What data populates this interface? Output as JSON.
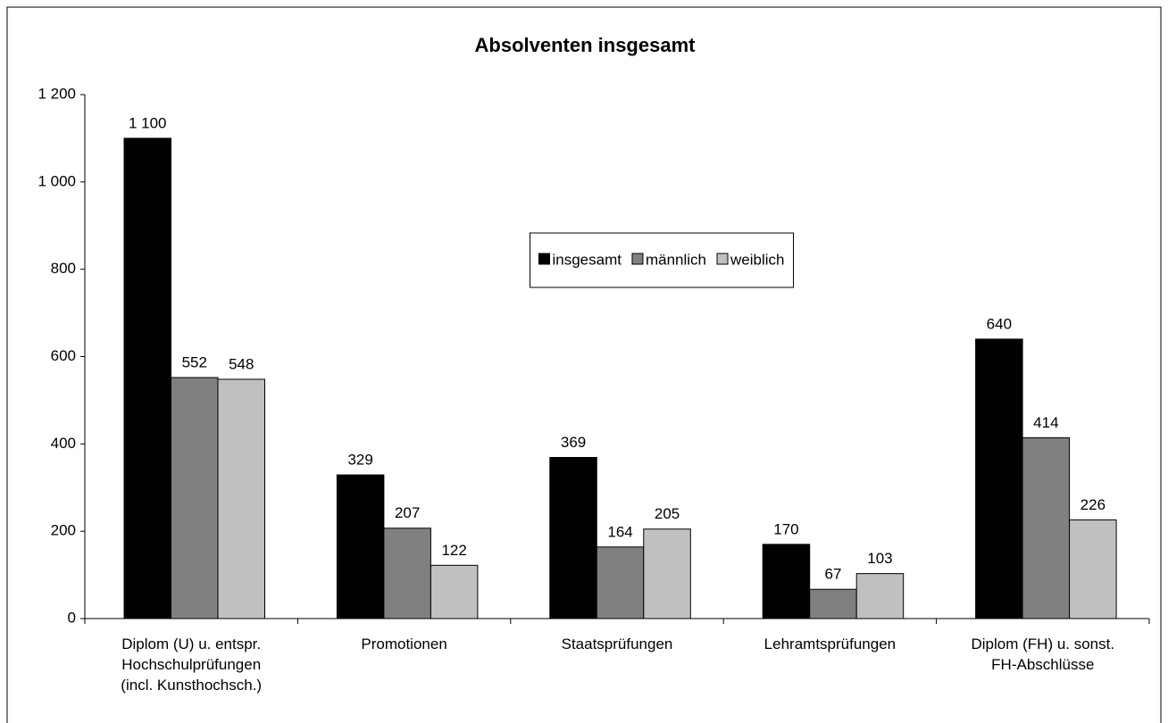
{
  "chart_data": {
    "type": "bar",
    "title": "Absolventen insgesamt",
    "categories": [
      "Diplom (U) u. entspr.\nHochschulprüfungen\n(incl. Kunsthochsch.)",
      "Promotionen",
      "Staatsprüfungen",
      "Lehramtsprüfungen",
      "Diplom (FH) u. sonst.\nFH-Abschlüsse"
    ],
    "series": [
      {
        "name": "insgesamt",
        "color": "#000000",
        "values": [
          1100,
          329,
          369,
          170,
          640
        ],
        "value_labels": [
          "1 100",
          "329",
          "369",
          "170",
          "640"
        ]
      },
      {
        "name": "männlich",
        "color": "#808080",
        "values": [
          552,
          207,
          164,
          67,
          414
        ]
      },
      {
        "name": "weiblich",
        "color": "#c0c0c0",
        "values": [
          548,
          122,
          205,
          103,
          226
        ]
      }
    ],
    "ylim": [
      0,
      1200
    ],
    "yticks": [
      0,
      200,
      400,
      600,
      800,
      {
        "value": 1000,
        "label": "1 000"
      },
      {
        "value": 1200,
        "label": "1 200"
      }
    ],
    "grid": false,
    "legend": "center"
  }
}
